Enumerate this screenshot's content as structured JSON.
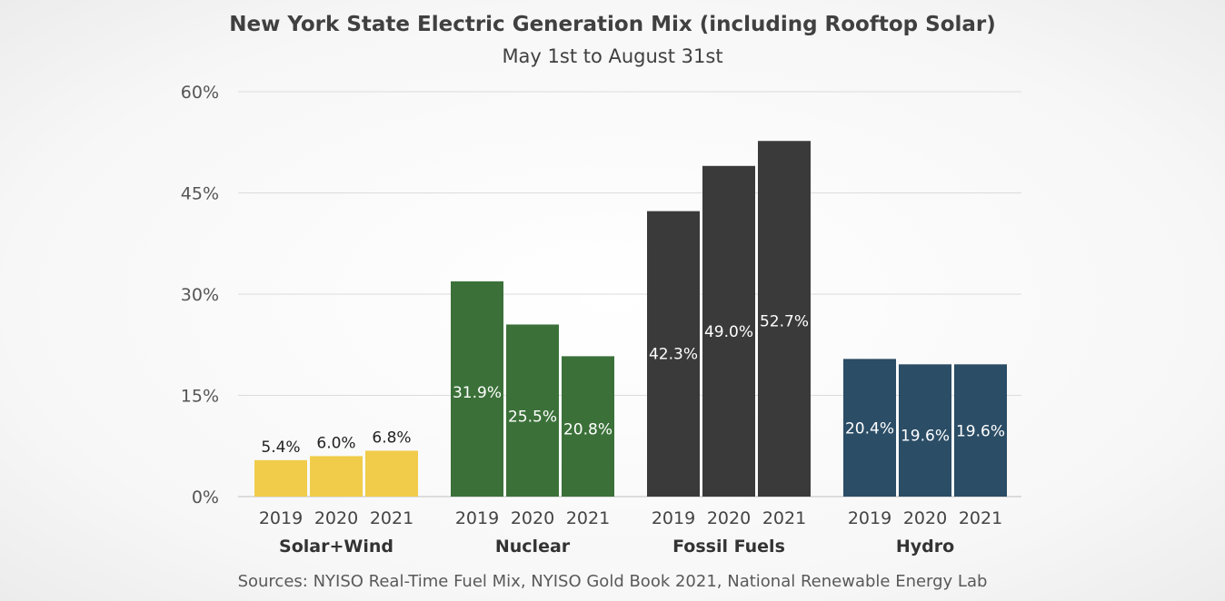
{
  "chart_data": {
    "type": "bar",
    "title": "New York State Electric Generation Mix (including Rooftop Solar)",
    "subtitle": "May 1st to August 31st",
    "ylim": [
      0,
      60
    ],
    "yticks": [
      0,
      15,
      30,
      45,
      60
    ],
    "ytick_labels": [
      "0%",
      "15%",
      "30%",
      "45%",
      "60%"
    ],
    "grid": true,
    "groups": [
      {
        "name": "Solar+Wind",
        "color": "#f0cc4a",
        "label_color": "#222222",
        "label_position": "above",
        "bars": [
          {
            "year": "2019",
            "value": 5.4,
            "label": "5.4%"
          },
          {
            "year": "2020",
            "value": 6.0,
            "label": "6.0%"
          },
          {
            "year": "2021",
            "value": 6.8,
            "label": "6.8%"
          }
        ]
      },
      {
        "name": "Nuclear",
        "color": "#3b7139",
        "label_color": "#ffffff",
        "label_position": "inside",
        "bars": [
          {
            "year": "2019",
            "value": 31.9,
            "label": "31.9%"
          },
          {
            "year": "2020",
            "value": 25.5,
            "label": "25.5%"
          },
          {
            "year": "2021",
            "value": 20.8,
            "label": "20.8%"
          }
        ]
      },
      {
        "name": "Fossil Fuels",
        "color": "#3a3a3a",
        "label_color": "#ffffff",
        "label_position": "inside",
        "bars": [
          {
            "year": "2019",
            "value": 42.3,
            "label": "42.3%"
          },
          {
            "year": "2020",
            "value": 49.0,
            "label": "49.0%"
          },
          {
            "year": "2021",
            "value": 52.7,
            "label": "52.7%"
          }
        ]
      },
      {
        "name": "Hydro",
        "color": "#2b4d66",
        "label_color": "#ffffff",
        "label_position": "inside",
        "bars": [
          {
            "year": "2019",
            "value": 20.4,
            "label": "20.4%"
          },
          {
            "year": "2020",
            "value": 19.6,
            "label": "19.6%"
          },
          {
            "year": "2021",
            "value": 19.6,
            "label": "19.6%"
          }
        ]
      }
    ]
  },
  "source_text": "Sources: NYISO Real-Time Fuel Mix, NYISO Gold Book 2021, National Renewable Energy Lab"
}
